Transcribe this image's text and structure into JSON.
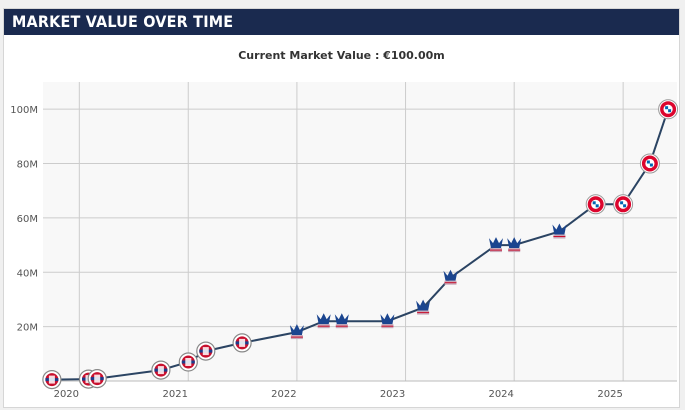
{
  "header": {
    "title": "MARKET VALUE OVER TIME"
  },
  "subtitle": "Current Market Value : €100.00m",
  "colors": {
    "line": "#2b4463",
    "grid": "#cccccc",
    "plot_bg": "#f8f8f8",
    "club_reading": "#c8102e",
    "club_crystal_palace": "#1b458f",
    "club_bayern": "#dc052d"
  },
  "chart_data": {
    "type": "line",
    "title": "",
    "xlabel": "",
    "ylabel": "",
    "x_ticks": [
      "2020",
      "2021",
      "2022",
      "2023",
      "2024",
      "2025"
    ],
    "y_ticks": [
      "20M",
      "40M",
      "60M",
      "80M",
      "100M"
    ],
    "ylim": [
      0,
      110
    ],
    "xlim": [
      "2019-09-01",
      "2025-07-01"
    ],
    "grid": true,
    "series": [
      {
        "values_unit": "€m",
        "points": [
          {
            "date": "2019-10-01",
            "value": 0.5,
            "icon": "reading-crest-icon"
          },
          {
            "date": "2020-02-01",
            "value": 0.7,
            "icon": "reading-crest-icon"
          },
          {
            "date": "2020-03-01",
            "value": 0.9,
            "icon": "reading-crest-icon"
          },
          {
            "date": "2020-10-01",
            "value": 4,
            "icon": "reading-crest-icon"
          },
          {
            "date": "2021-01-01",
            "value": 7,
            "icon": "reading-crest-icon"
          },
          {
            "date": "2021-03-01",
            "value": 11,
            "icon": "reading-crest-icon"
          },
          {
            "date": "2021-07-01",
            "value": 14,
            "icon": "reading-crest-icon"
          },
          {
            "date": "2022-01-01",
            "value": 18,
            "icon": "crystal-palace-crest-icon"
          },
          {
            "date": "2022-04-01",
            "value": 22,
            "icon": "crystal-palace-crest-icon"
          },
          {
            "date": "2022-06-01",
            "value": 22,
            "icon": "crystal-palace-crest-icon"
          },
          {
            "date": "2022-11-01",
            "value": 22,
            "icon": "crystal-palace-crest-icon"
          },
          {
            "date": "2023-03-01",
            "value": 27,
            "icon": "crystal-palace-crest-icon"
          },
          {
            "date": "2023-06-01",
            "value": 38,
            "icon": "crystal-palace-crest-icon"
          },
          {
            "date": "2023-11-01",
            "value": 50,
            "icon": "crystal-palace-crest-icon"
          },
          {
            "date": "2024-01-01",
            "value": 50,
            "icon": "crystal-palace-crest-icon"
          },
          {
            "date": "2024-06-01",
            "value": 55,
            "icon": "crystal-palace-crest-icon"
          },
          {
            "date": "2024-10-01",
            "value": 65,
            "icon": "bayern-crest-icon"
          },
          {
            "date": "2025-01-01",
            "value": 65,
            "icon": "bayern-crest-icon"
          },
          {
            "date": "2025-04-01",
            "value": 80,
            "icon": "bayern-crest-icon"
          },
          {
            "date": "2025-06-01",
            "value": 100,
            "icon": "bayern-crest-icon"
          }
        ]
      }
    ]
  }
}
